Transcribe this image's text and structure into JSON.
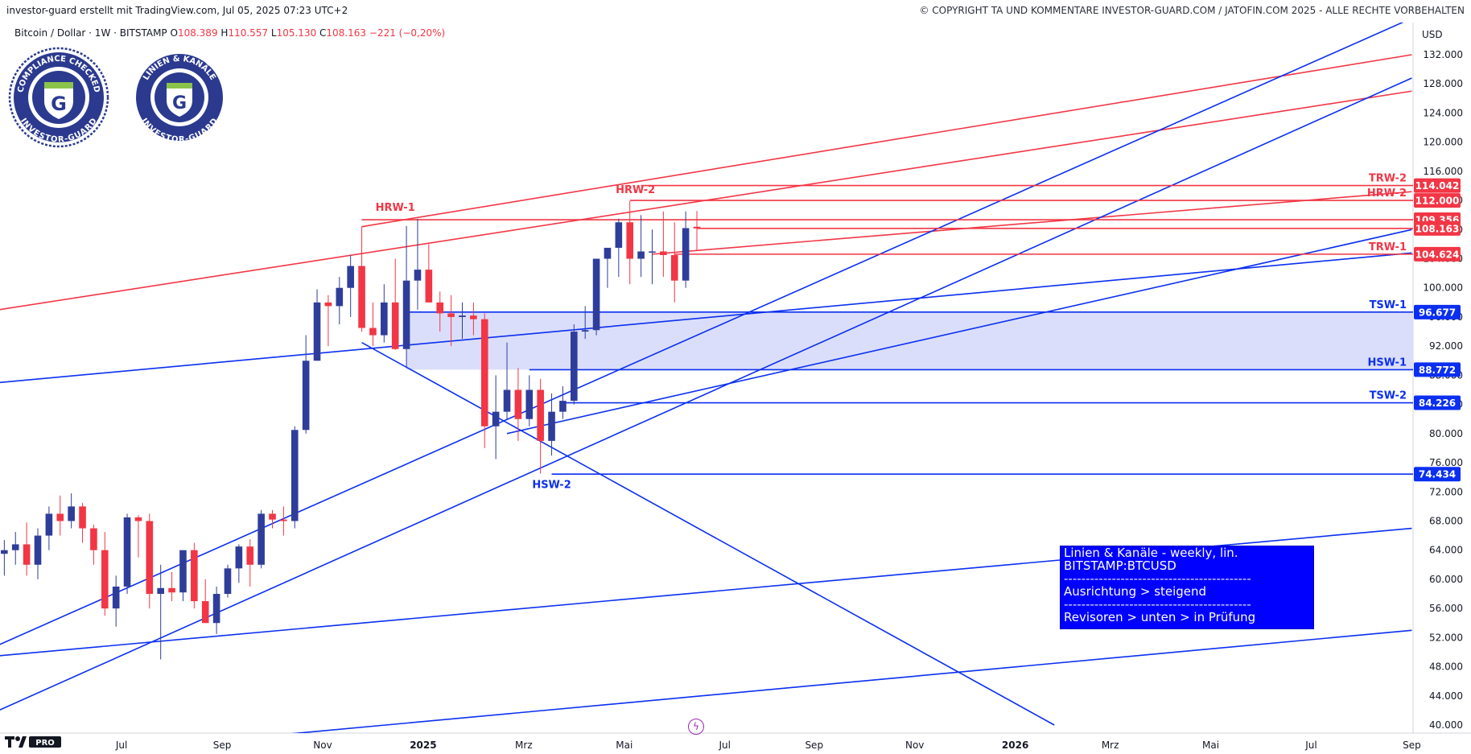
{
  "header": {
    "left": "investor-guard erstellt mit TradingView.com, Jul 05, 2025 07:23 UTC+2",
    "right": "© COPYRIGHT TA UND KOMMENTARE INVESTOR-GUARD.COM / JATOFIN.COM 2025 - ALLE RECHTE VORBEHALTEN"
  },
  "symbol": {
    "name": "Bitcoin / Dollar · 1W · BITSTAMP",
    "o_label": "O",
    "o": "108.389",
    "h_label": "H",
    "h": "110.557",
    "l_label": "L",
    "l": "105.130",
    "c_label": "C",
    "c": "108.163",
    "change": "−221 (−0,20%)"
  },
  "badges": [
    {
      "top": "COMPLIANCE CHECKED",
      "bottom": "INVESTOR-GUARD",
      "icon": "g-shield-icon"
    },
    {
      "top": "LINIEN & KANÄLE",
      "bottom": "INVESTOR-GUARD",
      "icon": "g-shield-icon"
    }
  ],
  "note": {
    "line1": "Linien & Kanäle - weekly, lin.",
    "line2": "BITSTAMP:BTCUSD",
    "sep": "-------------------------------------------",
    "line3": "Ausrichtung > steigend",
    "line4": "Revisoren > unten > in Prüfung"
  },
  "axis": {
    "currency": "USD"
  },
  "chart_data": {
    "type": "candlestick",
    "title": "Bitcoin / Dollar · 1W · BITSTAMP",
    "ylim": [
      38000,
      136000
    ],
    "y_ticks": [
      40000,
      44000,
      48000,
      52000,
      56000,
      60000,
      64000,
      68000,
      72000,
      76000,
      80000,
      84000,
      88000,
      92000,
      96000,
      100000,
      104000,
      108000,
      112000,
      116000,
      120000,
      124000,
      128000,
      132000
    ],
    "y_tick_labels": [
      "40.000",
      "44.000",
      "48.000",
      "52.000",
      "56.000",
      "60.000",
      "64.000",
      "68.000",
      "72.000",
      "76.000",
      "80.000",
      "84.000",
      "88.000",
      "92.000",
      "96.000",
      "100.000",
      "104.000",
      "108.000",
      "112.000",
      "116.000",
      "120.000",
      "124.000",
      "128.000",
      "132.000"
    ],
    "x_tick_labels": [
      "Jul",
      "Sep",
      "Nov",
      "2025",
      "Mrz",
      "Mai",
      "Jul",
      "Sep",
      "Nov",
      "2026",
      "Mrz",
      "Mai",
      "Jul",
      "Sep"
    ],
    "x_tick_weeks": [
      7.5,
      16.5,
      25.5,
      34.5,
      43.5,
      52.5,
      61.5,
      69.5,
      78.5,
      87.5,
      96,
      105,
      114,
      123
    ],
    "x_range_weeks": [
      -3.5,
      123
    ],
    "candles": [
      [
        -3,
        63500,
        65400,
        60500,
        64000
      ],
      [
        -2,
        64000,
        66500,
        62000,
        64800
      ],
      [
        -1,
        64800,
        67800,
        60500,
        62000
      ],
      [
        0,
        62000,
        67000,
        60000,
        66000
      ],
      [
        1,
        66000,
        70000,
        64000,
        69000
      ],
      [
        2,
        69000,
        71500,
        66000,
        68000
      ],
      [
        3,
        68000,
        71800,
        67000,
        70000
      ],
      [
        4,
        70000,
        70500,
        65000,
        67000
      ],
      [
        5,
        67000,
        67500,
        62000,
        64000
      ],
      [
        6,
        64000,
        66500,
        55000,
        56000
      ],
      [
        7,
        56000,
        60500,
        53500,
        59000
      ],
      [
        8,
        59000,
        69000,
        58000,
        68500
      ],
      [
        9,
        68500,
        68800,
        63000,
        68000
      ],
      [
        10,
        68000,
        69000,
        56000,
        58000
      ],
      [
        11,
        58000,
        62000,
        49000,
        58800
      ],
      [
        12,
        58800,
        61000,
        57000,
        58200
      ],
      [
        13,
        58200,
        64000,
        57000,
        64000
      ],
      [
        14,
        64000,
        65000,
        56000,
        57000
      ],
      [
        15,
        57000,
        60000,
        54000,
        54000
      ],
      [
        16,
        54000,
        59000,
        52500,
        58000
      ],
      [
        17,
        58000,
        62000,
        57500,
        61500
      ],
      [
        18,
        61500,
        64800,
        59500,
        64500
      ],
      [
        19,
        64500,
        65500,
        59000,
        62000
      ],
      [
        20,
        62000,
        69500,
        61500,
        69000
      ],
      [
        21,
        69000,
        69500,
        67000,
        68200
      ],
      [
        22,
        68200,
        70000,
        66000,
        68000
      ],
      [
        23,
        68000,
        81000,
        67000,
        80500
      ],
      [
        24,
        80500,
        93500,
        80000,
        90000
      ],
      [
        25,
        90000,
        99800,
        90000,
        98000
      ],
      [
        26,
        98000,
        99000,
        92000,
        97500
      ],
      [
        27,
        97500,
        101500,
        95000,
        100000
      ],
      [
        28,
        100000,
        104500,
        96000,
        103000
      ],
      [
        29,
        103000,
        108400,
        94000,
        94500
      ],
      [
        30,
        94500,
        98000,
        92000,
        93500
      ],
      [
        31,
        93500,
        100500,
        92500,
        98000
      ],
      [
        32,
        98000,
        104000,
        91500,
        91600
      ],
      [
        33,
        91600,
        108500,
        89000,
        101000
      ],
      [
        34,
        101000,
        109500,
        97000,
        102500
      ],
      [
        35,
        102500,
        106000,
        98000,
        98000
      ],
      [
        36,
        98000,
        99500,
        94000,
        96500
      ],
      [
        37,
        96500,
        99000,
        92000,
        96000
      ],
      [
        38,
        96000,
        98000,
        93000,
        96200
      ],
      [
        39,
        96200,
        98000,
        93500,
        95700
      ],
      [
        40,
        95700,
        96500,
        78000,
        81000
      ],
      [
        41,
        81000,
        88000,
        76500,
        83000
      ],
      [
        42,
        83000,
        92500,
        82000,
        86000
      ],
      [
        43,
        86000,
        89000,
        79000,
        82000
      ],
      [
        44,
        82000,
        88000,
        81000,
        86000
      ],
      [
        45,
        86000,
        87500,
        74500,
        79000
      ],
      [
        46,
        79000,
        85500,
        77000,
        83000
      ],
      [
        47,
        83000,
        86500,
        82000,
        84500
      ],
      [
        48,
        84500,
        95000,
        84000,
        94000
      ],
      [
        49,
        94000,
        97500,
        93000,
        94200
      ],
      [
        50,
        94200,
        104000,
        93500,
        104000
      ],
      [
        51,
        104000,
        105500,
        100000,
        105500
      ],
      [
        52,
        105500,
        109500,
        101500,
        109000
      ],
      [
        53,
        109000,
        111900,
        100500,
        104000
      ],
      [
        54,
        104000,
        110000,
        101500,
        105000
      ],
      [
        55,
        105000,
        108000,
        100500,
        105000
      ],
      [
        56,
        105000,
        110500,
        101500,
        104500
      ],
      [
        57,
        104500,
        109000,
        98000,
        101000
      ],
      [
        58,
        101000,
        110500,
        100000,
        108200
      ],
      [
        59,
        108389,
        110557,
        105130,
        108163
      ]
    ],
    "candle_fields": [
      "week",
      "open",
      "high",
      "low",
      "close"
    ],
    "trendlines": [
      {
        "color": "red",
        "p1": [
          -3.5,
          97000
        ],
        "p2": [
          123,
          127000
        ]
      },
      {
        "color": "red",
        "p1": [
          29,
          108400
        ],
        "p2": [
          123,
          132000
        ],
        "label": "HRW-1"
      },
      {
        "color": "red",
        "p1": [
          55,
          104624
        ],
        "p2": [
          123,
          113200
        ],
        "label": "TRW-2"
      },
      {
        "color": "blue",
        "p1": [
          -3.5,
          87000
        ],
        "p2": [
          123,
          104800
        ]
      },
      {
        "color": "blue",
        "p1": [
          29,
          92500
        ],
        "p2": [
          91,
          40000
        ]
      },
      {
        "color": "blue",
        "p1": [
          -3.5,
          49500
        ],
        "p2": [
          123,
          67000
        ]
      },
      {
        "color": "blue",
        "p1": [
          -3.5,
          42000
        ],
        "p2": [
          123,
          128800
        ]
      },
      {
        "color": "blue",
        "p1": [
          -3.5,
          51000
        ],
        "p2": [
          123,
          137000
        ]
      },
      {
        "color": "blue",
        "p1": [
          17,
          38000
        ],
        "p2": [
          123,
          53000
        ]
      },
      {
        "color": "blue",
        "p1": [
          42,
          80000
        ],
        "p2": [
          123,
          108000
        ]
      }
    ],
    "levels": [
      {
        "value": 114042,
        "color": "red",
        "label": "TRW-2",
        "from": 54,
        "price_label": "114.042"
      },
      {
        "value": 112000,
        "color": "red",
        "label": "HRW-2",
        "from": 53,
        "price_label": "112.000"
      },
      {
        "value": 109356,
        "color": "red",
        "label": "",
        "from": 29,
        "price_label": "109.356"
      },
      {
        "value": 108163,
        "color": "red",
        "label": "",
        "from": 59,
        "price_label": "108.163"
      },
      {
        "value": 104624,
        "color": "red",
        "label": "TRW-1",
        "from": 57,
        "price_label": "104.624"
      },
      {
        "value": 96677,
        "color": "blue",
        "label": "TSW-1",
        "from": 33,
        "price_label": "96.677"
      },
      {
        "value": 88772,
        "color": "blue",
        "label": "HSW-1",
        "from": 44,
        "price_label": "88.772"
      },
      {
        "value": 84226,
        "color": "blue",
        "label": "TSW-2",
        "from": 47,
        "price_label": "84.226"
      },
      {
        "value": 74434,
        "color": "blue",
        "label": "",
        "from": 46,
        "price_label": "74.434"
      }
    ],
    "annotations": [
      {
        "text": "HRW-1",
        "week": 32,
        "value": 110600,
        "color": "red"
      },
      {
        "text": "HRW-2",
        "week": 53.5,
        "value": 113000,
        "color": "red"
      },
      {
        "text": "HSW-2",
        "week": 46,
        "value": 72500,
        "color": "blue"
      }
    ],
    "zone": {
      "from_week": 33,
      "to_week": 123,
      "low": 88772,
      "high": 96677,
      "color": "#d8dcfa"
    },
    "colors": {
      "up": "#2f3d9a",
      "down": "#f23645",
      "red_line": "#f23645",
      "blue_line": "#0b2ff0"
    }
  }
}
